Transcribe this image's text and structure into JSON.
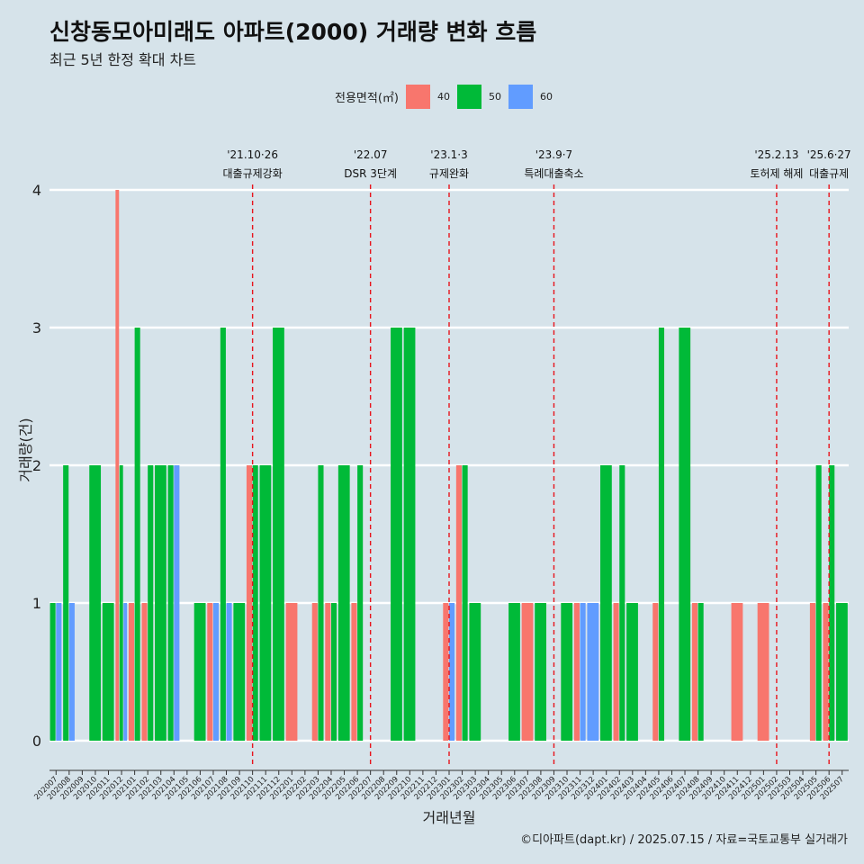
{
  "title": "신창동모아미래도 아파트(2000) 거래량 변화 흐름",
  "subtitle": "최근 5년 한정 확대 차트",
  "legend": {
    "title": "전용면적(㎡)",
    "items": [
      {
        "label": "40",
        "color": "#F8766D"
      },
      {
        "label": "50",
        "color": "#00BA38"
      },
      {
        "label": "60",
        "color": "#619CFF"
      }
    ]
  },
  "caption": "©디아파트(dapt.kr) / 2025.07.15 / 자료=국토교통부 실거래가",
  "chart_data": {
    "type": "bar",
    "title": "신창동모아미래도 아파트(2000) 거래량 변화 흐름",
    "subtitle": "최근 5년 한정 확대 차트",
    "xlabel": "거래년월",
    "ylabel": "거래량(건)",
    "ylim": [
      0,
      4
    ],
    "yticks": [
      0,
      1,
      2,
      3,
      4
    ],
    "grid": true,
    "legend_position": "top",
    "categories": [
      "202007",
      "202008",
      "202009",
      "202010",
      "202011",
      "202012",
      "202101",
      "202102",
      "202103",
      "202104",
      "202105",
      "202106",
      "202107",
      "202108",
      "202109",
      "202110",
      "202111",
      "202112",
      "202201",
      "202202",
      "202203",
      "202204",
      "202205",
      "202206",
      "202207",
      "202208",
      "202209",
      "202210",
      "202211",
      "202212",
      "202301",
      "202302",
      "202303",
      "202304",
      "202305",
      "202306",
      "202307",
      "202308",
      "202309",
      "202310",
      "202311",
      "202312",
      "202401",
      "202402",
      "202403",
      "202404",
      "202405",
      "202406",
      "202407",
      "202408",
      "202409",
      "202410",
      "202411",
      "202412",
      "202501",
      "202502",
      "202503",
      "202504",
      "202505",
      "202506",
      "202507"
    ],
    "series": [
      {
        "name": "40",
        "color": "#F8766D",
        "values": [
          0,
          0,
          0,
          0,
          0,
          4,
          1,
          1,
          0,
          0,
          0,
          0,
          1,
          0,
          0,
          2,
          0,
          0,
          1,
          0,
          1,
          1,
          0,
          1,
          0,
          0,
          0,
          0,
          0,
          0,
          1,
          2,
          0,
          0,
          0,
          0,
          1,
          0,
          0,
          0,
          1,
          0,
          0,
          1,
          0,
          0,
          1,
          0,
          0,
          1,
          0,
          0,
          1,
          0,
          1,
          0,
          0,
          0,
          1,
          1,
          0
        ]
      },
      {
        "name": "50",
        "color": "#00BA38",
        "values": [
          1,
          2,
          0,
          2,
          1,
          2,
          3,
          2,
          2,
          2,
          0,
          1,
          0,
          3,
          1,
          2,
          2,
          3,
          0,
          0,
          2,
          1,
          2,
          2,
          0,
          0,
          3,
          3,
          0,
          0,
          0,
          2,
          1,
          0,
          0,
          1,
          0,
          1,
          0,
          1,
          0,
          0,
          2,
          2,
          1,
          0,
          3,
          0,
          3,
          1,
          0,
          0,
          0,
          0,
          0,
          0,
          0,
          0,
          2,
          2,
          1
        ]
      },
      {
        "name": "60",
        "color": "#619CFF",
        "values": [
          1,
          1,
          0,
          0,
          0,
          1,
          0,
          0,
          0,
          2,
          0,
          0,
          1,
          1,
          0,
          0,
          0,
          0,
          0,
          0,
          0,
          0,
          0,
          0,
          0,
          0,
          0,
          0,
          0,
          0,
          1,
          0,
          0,
          0,
          0,
          0,
          0,
          0,
          0,
          0,
          1,
          1,
          0,
          0,
          0,
          0,
          0,
          0,
          0,
          0,
          0,
          0,
          0,
          0,
          0,
          0,
          0,
          0,
          0,
          0,
          0
        ]
      }
    ],
    "annotations": [
      {
        "x": "202110",
        "line1": "'21.10·26",
        "line2": "대출규제강화"
      },
      {
        "x": "202207",
        "line1": "'22.07",
        "line2": "DSR 3단계"
      },
      {
        "x": "202301",
        "line1": "'23.1·3",
        "line2": "규제완화"
      },
      {
        "x": "202309",
        "line1": "'23.9·7",
        "line2": "특례대출축소"
      },
      {
        "x": "202502",
        "line1": "'25.2.13",
        "line2": "토허제 해제"
      },
      {
        "x": "202506",
        "line1": "'25.6·27",
        "line2": "대출규제"
      }
    ]
  }
}
